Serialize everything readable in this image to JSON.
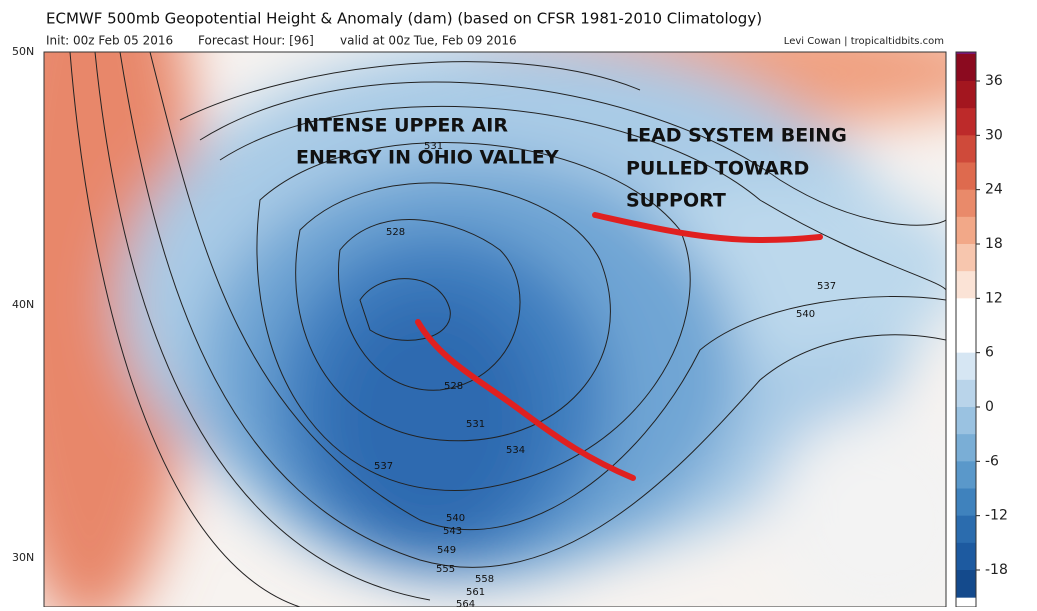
{
  "header": {
    "title": "ECMWF 500mb Geopotential Height & Anomaly (dam) (based on CFSR 1981-2010 Climatology)",
    "init": "Init: 00z Feb 05 2016",
    "forecast_hour": "Forecast Hour: [96]",
    "valid": "valid at 00z Tue, Feb 09 2016",
    "credit": "Levi Cowan | tropicaltidbits.com"
  },
  "map": {
    "lat_labels": [
      "50N",
      "40N",
      "30N"
    ],
    "annotations": [
      "INTENSE UPPER AIR",
      "ENERGY IN OHIO VALLEY",
      "LEAD SYSTEM BEING",
      "PULLED TOWARD",
      "SUPPORT"
    ],
    "contour_labels": [
      "531",
      "528",
      "528",
      "531",
      "534",
      "537",
      "537",
      "540",
      "540",
      "543",
      "549",
      "555",
      "558",
      "561",
      "564"
    ]
  },
  "colorbar": {
    "ticks": [
      36,
      30,
      24,
      18,
      12,
      6,
      0,
      -6,
      -12,
      -18
    ]
  }
}
